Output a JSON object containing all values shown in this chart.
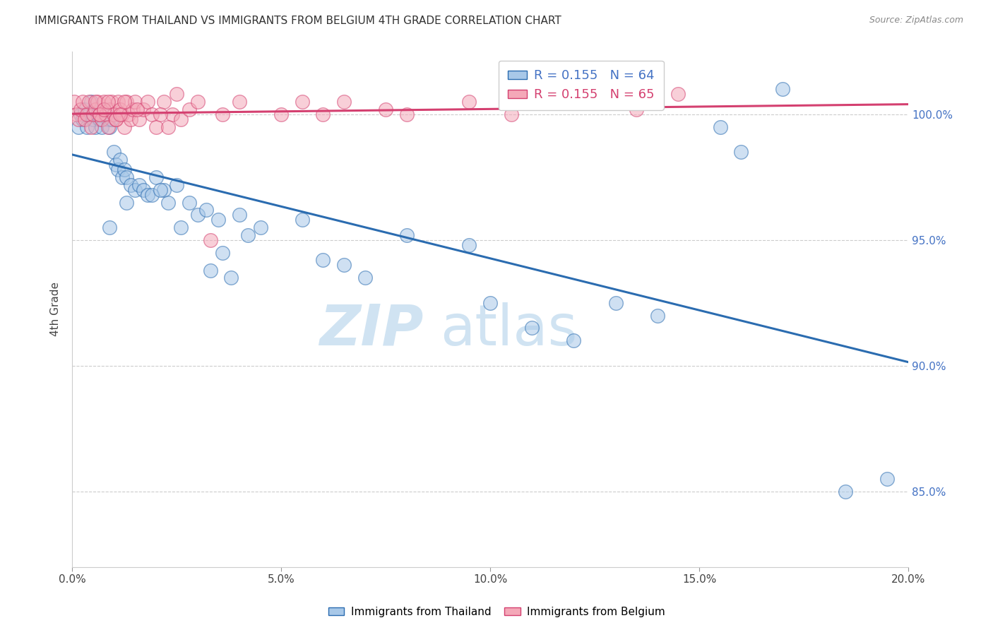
{
  "title": "IMMIGRANTS FROM THAILAND VS IMMIGRANTS FROM BELGIUM 4TH GRADE CORRELATION CHART",
  "source": "Source: ZipAtlas.com",
  "ylabel": "4th Grade",
  "legend_blue_r": "R = 0.155",
  "legend_blue_n": "N = 64",
  "legend_pink_r": "R = 0.155",
  "legend_pink_n": "N = 65",
  "legend_blue_label": "Immigrants from Thailand",
  "legend_pink_label": "Immigrants from Belgium",
  "x_min": 0.0,
  "x_max": 20.0,
  "y_min": 82.0,
  "y_max": 102.5,
  "yticks": [
    85.0,
    90.0,
    95.0,
    100.0
  ],
  "xticks": [
    0.0,
    5.0,
    10.0,
    15.0,
    20.0
  ],
  "color_blue": "#a8c8e8",
  "color_pink": "#f4a8b8",
  "color_blue_line": "#2b6cb0",
  "color_pink_line": "#d44070",
  "watermark_zip": "ZIP",
  "watermark_atlas": "atlas",
  "thailand_x": [
    0.15,
    0.2,
    0.25,
    0.3,
    0.35,
    0.4,
    0.45,
    0.5,
    0.55,
    0.6,
    0.65,
    0.7,
    0.75,
    0.8,
    0.85,
    0.9,
    0.95,
    1.0,
    1.05,
    1.1,
    1.15,
    1.2,
    1.25,
    1.3,
    1.4,
    1.5,
    1.6,
    1.7,
    1.8,
    2.0,
    2.2,
    2.5,
    2.8,
    3.0,
    3.2,
    3.5,
    4.0,
    4.5,
    5.5,
    6.5,
    7.0,
    8.0,
    9.5,
    10.0,
    11.0,
    12.0,
    13.0,
    14.0,
    15.5,
    16.0,
    17.0,
    18.5,
    19.5,
    3.8,
    2.3,
    1.9,
    2.1,
    2.6,
    4.2,
    6.0,
    3.3,
    3.6,
    1.3,
    0.9
  ],
  "thailand_y": [
    99.5,
    100.0,
    99.8,
    100.2,
    99.5,
    100.0,
    100.5,
    99.8,
    99.5,
    100.0,
    99.8,
    99.5,
    100.2,
    100.0,
    99.8,
    99.5,
    99.8,
    98.5,
    98.0,
    97.8,
    98.2,
    97.5,
    97.8,
    97.5,
    97.2,
    97.0,
    97.2,
    97.0,
    96.8,
    97.5,
    97.0,
    97.2,
    96.5,
    96.0,
    96.2,
    95.8,
    96.0,
    95.5,
    95.8,
    94.0,
    93.5,
    95.2,
    94.8,
    92.5,
    91.5,
    91.0,
    92.5,
    92.0,
    99.5,
    98.5,
    101.0,
    85.0,
    85.5,
    93.5,
    96.5,
    96.8,
    97.0,
    95.5,
    95.2,
    94.2,
    93.8,
    94.5,
    96.5,
    95.5
  ],
  "belgium_x": [
    0.05,
    0.1,
    0.15,
    0.2,
    0.25,
    0.3,
    0.35,
    0.4,
    0.45,
    0.5,
    0.55,
    0.6,
    0.65,
    0.7,
    0.75,
    0.8,
    0.85,
    0.9,
    0.95,
    1.0,
    1.05,
    1.1,
    1.15,
    1.2,
    1.25,
    1.3,
    1.35,
    1.4,
    1.45,
    1.5,
    1.6,
    1.7,
    1.8,
    1.9,
    2.0,
    2.2,
    2.4,
    2.6,
    2.8,
    3.0,
    3.3,
    3.6,
    4.0,
    5.0,
    6.5,
    7.5,
    8.0,
    9.5,
    10.5,
    12.0,
    13.5,
    14.5,
    0.55,
    0.65,
    0.75,
    0.85,
    1.05,
    1.15,
    1.25,
    1.55,
    2.1,
    2.3,
    2.5,
    5.5,
    6.0
  ],
  "belgium_y": [
    100.5,
    100.0,
    99.8,
    100.2,
    100.5,
    99.8,
    100.0,
    100.5,
    99.5,
    100.0,
    100.2,
    100.5,
    100.0,
    99.8,
    100.5,
    100.0,
    99.5,
    100.2,
    100.5,
    100.0,
    99.8,
    100.5,
    100.2,
    100.0,
    99.5,
    100.5,
    100.0,
    99.8,
    100.2,
    100.5,
    99.8,
    100.2,
    100.5,
    100.0,
    99.5,
    100.5,
    100.0,
    99.8,
    100.2,
    100.5,
    95.0,
    100.0,
    100.5,
    100.0,
    100.5,
    100.2,
    100.0,
    100.5,
    100.0,
    100.5,
    100.2,
    100.8,
    100.5,
    100.0,
    100.2,
    100.5,
    99.8,
    100.0,
    100.5,
    100.2,
    100.0,
    99.5,
    100.8,
    100.5,
    100.0
  ]
}
